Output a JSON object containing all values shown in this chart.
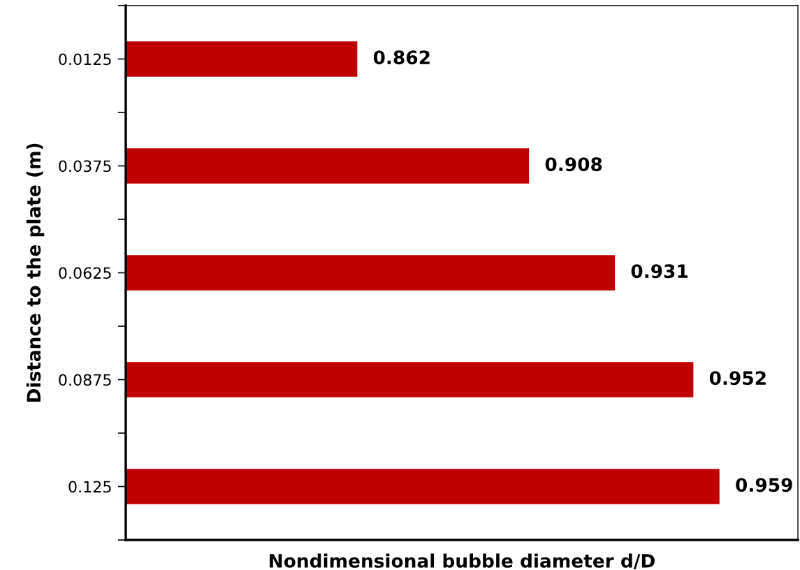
{
  "chart_data": {
    "type": "bar",
    "orientation": "horizontal",
    "xlabel": "Nondimensional bubble diameter d/D",
    "ylabel": "Distance to the plate (m)",
    "categories": [
      "0.0125",
      "0.0375",
      "0.0625",
      "0.0875",
      "0.125"
    ],
    "values": [
      0.862,
      0.908,
      0.931,
      0.952,
      0.959
    ],
    "color": "#c00000",
    "xlim": [
      0.8,
      0.98
    ],
    "tick_labels": "y",
    "data_labels": true,
    "grid": false,
    "legend": false
  }
}
